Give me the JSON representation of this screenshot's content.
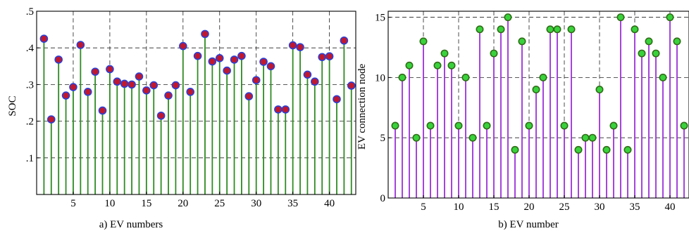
{
  "chart_data": [
    {
      "type": "stem",
      "xlabel": "a) EV numbers",
      "ylabel": "SOC",
      "xlim": [
        0,
        43.6
      ],
      "ylim": [
        0,
        0.5
      ],
      "xticks": [
        5,
        10,
        15,
        20,
        25,
        30,
        35,
        40
      ],
      "yticks": [
        0.1,
        0.2,
        0.3,
        0.4,
        0.5
      ],
      "ytick_labels": [
        ".1",
        ".2",
        ".3",
        ".4",
        ".5"
      ],
      "grid": true,
      "colors": {
        "stem": "#2e8b22",
        "marker_fill": "#c0182e",
        "marker_edge": "#2b3fd6"
      },
      "x": [
        1,
        2,
        3,
        4,
        5,
        6,
        7,
        8,
        9,
        10,
        11,
        12,
        13,
        14,
        15,
        16,
        17,
        18,
        19,
        20,
        21,
        22,
        23,
        24,
        25,
        26,
        27,
        28,
        29,
        30,
        31,
        32,
        33,
        34,
        35,
        36,
        37,
        38,
        39,
        40,
        41,
        42,
        43
      ],
      "values": [
        0.425,
        0.205,
        0.368,
        0.27,
        0.293,
        0.408,
        0.28,
        0.335,
        0.229,
        0.342,
        0.308,
        0.302,
        0.3,
        0.322,
        0.284,
        0.298,
        0.215,
        0.27,
        0.298,
        0.405,
        0.28,
        0.378,
        0.438,
        0.363,
        0.372,
        0.338,
        0.368,
        0.378,
        0.268,
        0.312,
        0.362,
        0.35,
        0.232,
        0.232,
        0.407,
        0.402,
        0.327,
        0.308,
        0.375,
        0.377,
        0.26,
        0.42,
        0.297
      ]
    },
    {
      "type": "stem",
      "xlabel": "b) EV number",
      "ylabel": "EV connection node",
      "xlim": [
        0,
        42.7
      ],
      "ylim": [
        0,
        15.5
      ],
      "xticks": [
        5,
        10,
        15,
        20,
        25,
        30,
        35,
        40
      ],
      "yticks": [
        0,
        5,
        10,
        15
      ],
      "ytick_labels": [
        "0",
        "5",
        "10",
        "15"
      ],
      "grid": true,
      "colors": {
        "stem": "#9b30d9",
        "marker_fill": "#39d23c",
        "marker_edge": "#2f6d17"
      },
      "x": [
        1,
        2,
        3,
        4,
        5,
        6,
        7,
        8,
        9,
        10,
        11,
        12,
        13,
        14,
        15,
        16,
        17,
        18,
        19,
        20,
        21,
        22,
        23,
        24,
        25,
        26,
        27,
        28,
        29,
        30,
        31,
        32,
        33,
        34,
        35,
        36,
        37,
        38,
        39,
        40,
        41,
        42
      ],
      "values": [
        6,
        10,
        11,
        5,
        13,
        6,
        11,
        12,
        11,
        6,
        10,
        5,
        14,
        6,
        12,
        14,
        15,
        4,
        13,
        6,
        9,
        10,
        14,
        14,
        6,
        14,
        4,
        5,
        5,
        9,
        4,
        6,
        15,
        4,
        14,
        12,
        13,
        12,
        10,
        15,
        13,
        6
      ]
    }
  ]
}
